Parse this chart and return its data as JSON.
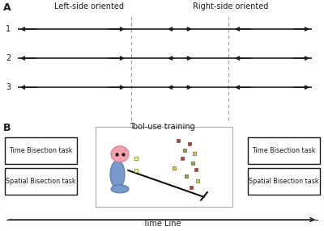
{
  "title_A": "A",
  "title_B": "B",
  "left_label": "Left-side oriented",
  "right_label": "Right-side oriented",
  "timeline_label": "Time Line",
  "tool_use_label": "Tool-use training",
  "box_labels_left": [
    "Time Bisection task",
    "Spatial Bisection task"
  ],
  "box_labels_right": [
    "Time Bisection task",
    "Spatial Bisection task"
  ],
  "row_labels": [
    "1",
    "2",
    "3"
  ],
  "bg_color": "#ffffff",
  "line_color": "#1a1a1a",
  "dashed_color": "#999999"
}
